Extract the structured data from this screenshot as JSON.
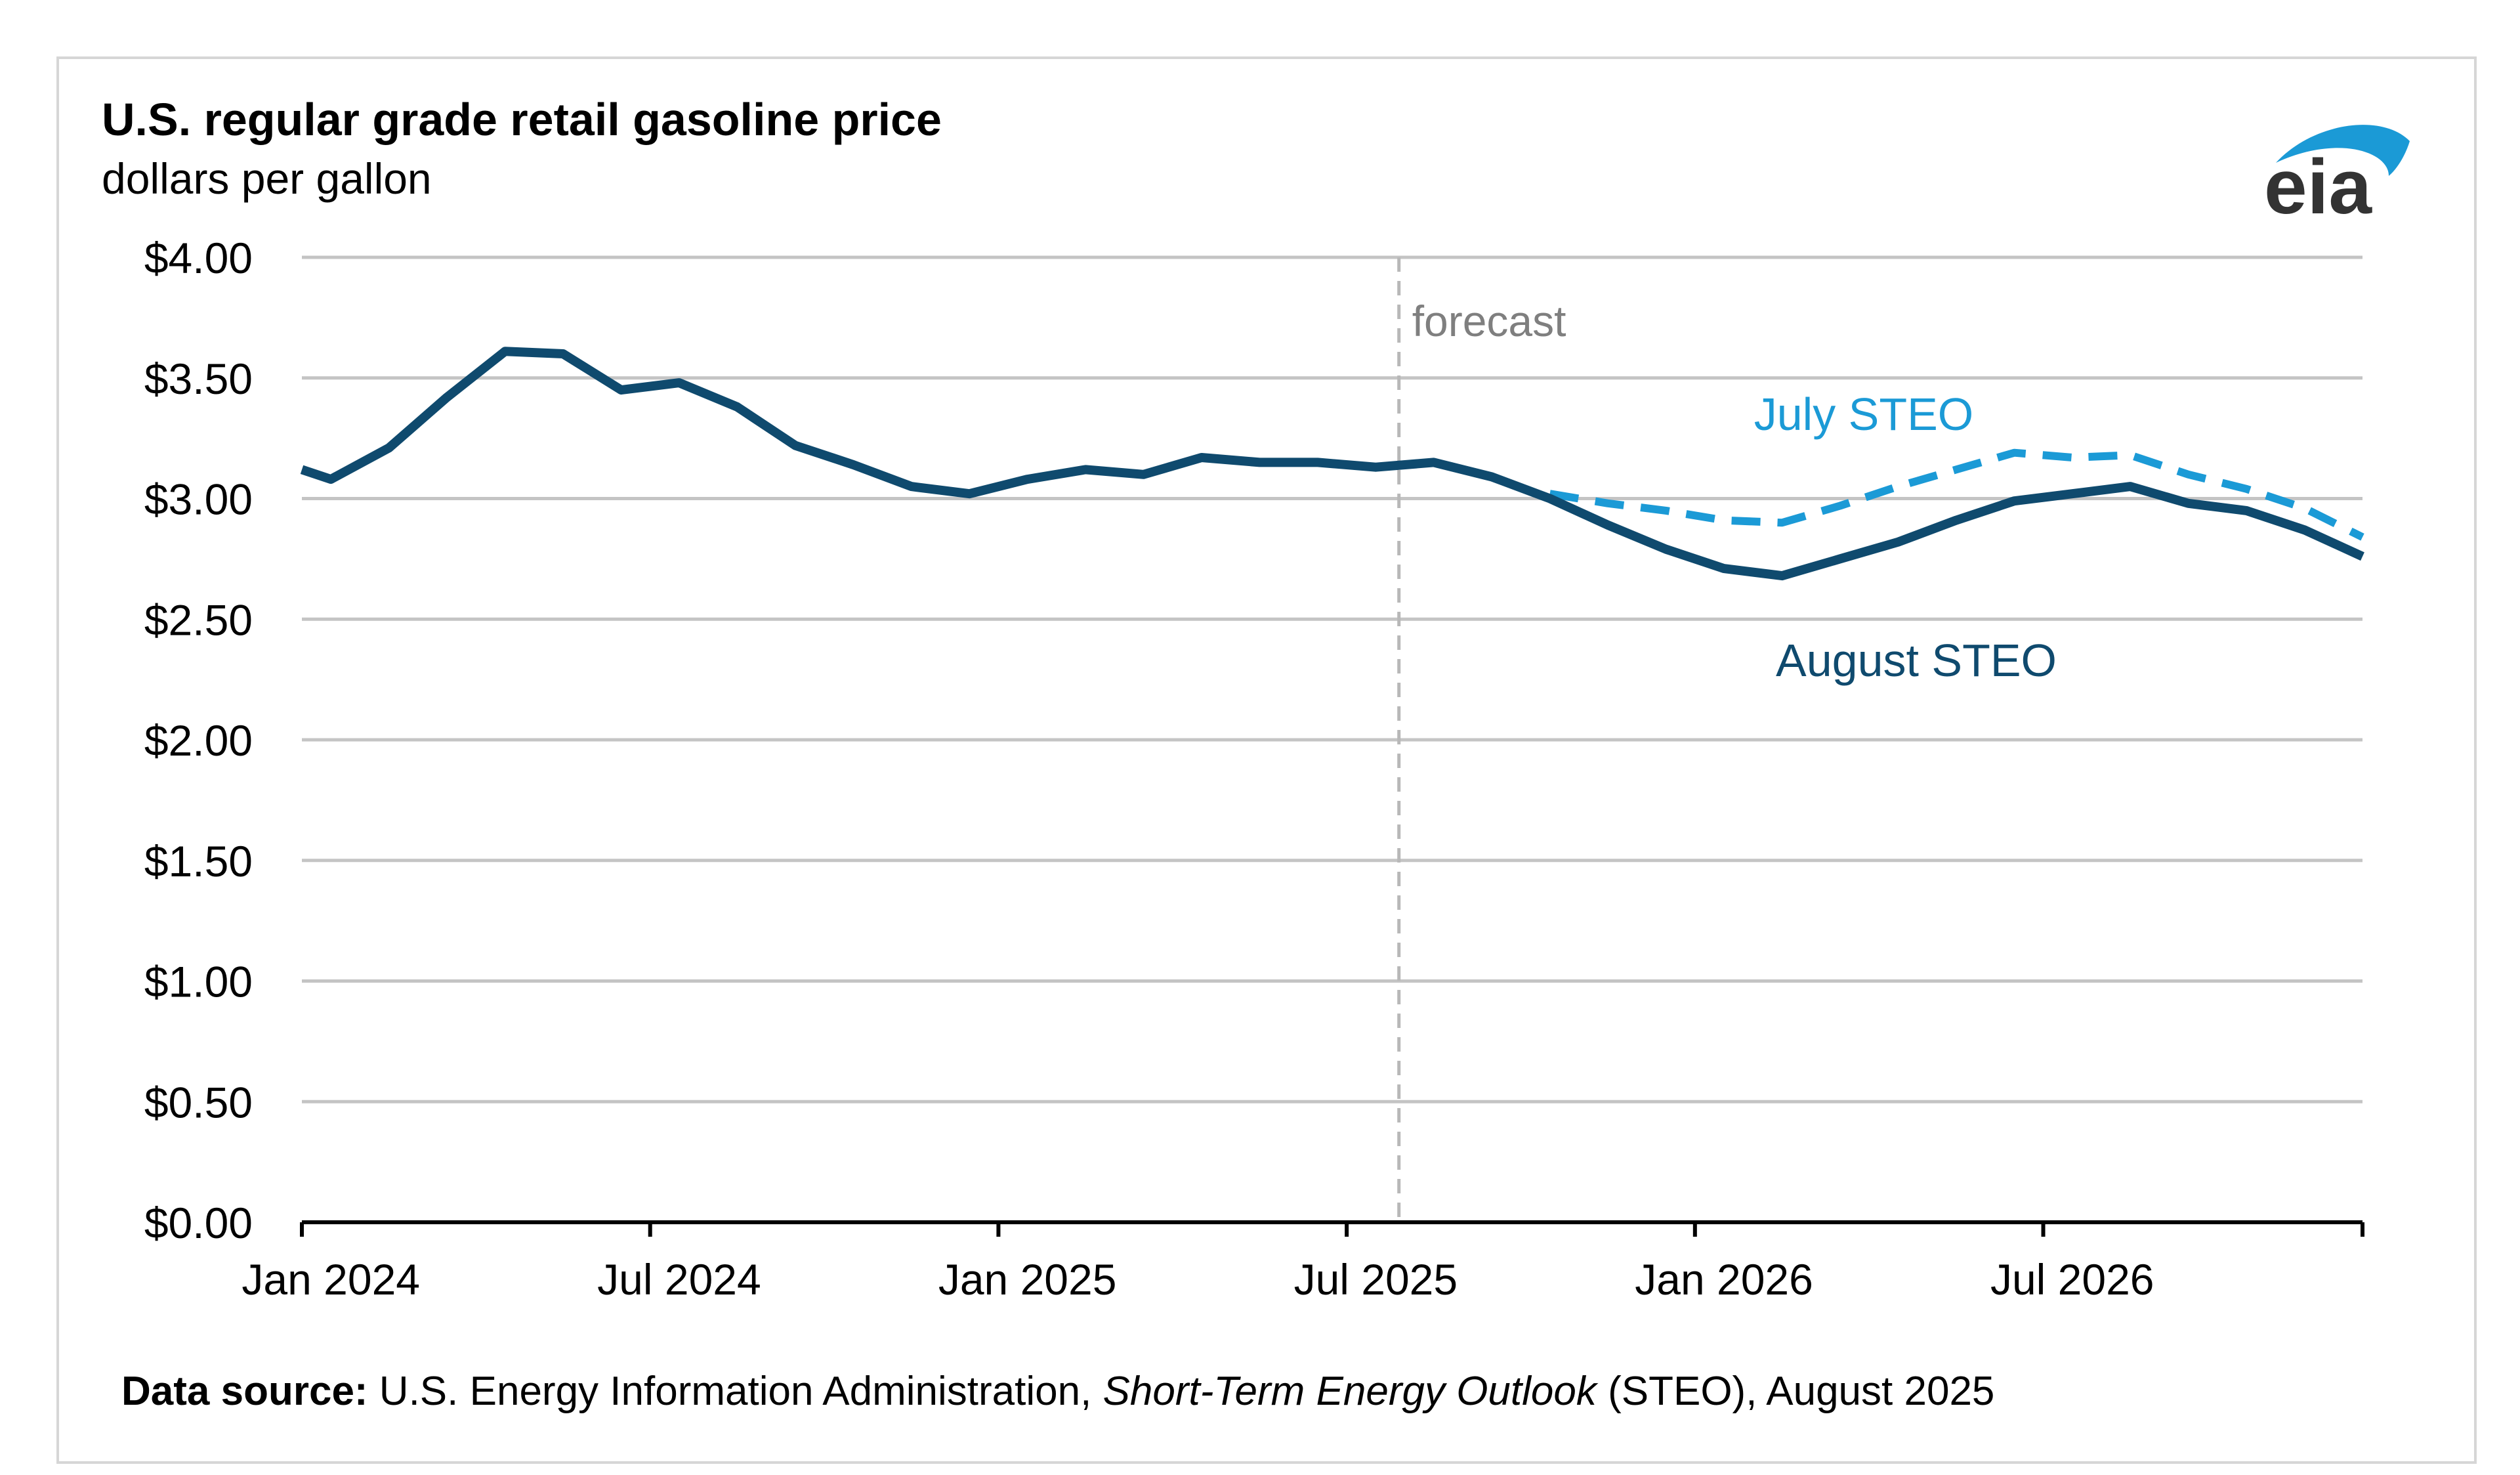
{
  "colors": {
    "august_line": "#0f4a6e",
    "july_line": "#1b9ad6",
    "gridline": "#c4c4c4",
    "axis": "#000000",
    "forecast_divider": "#b8b8b8",
    "forecast_label": "#7f7f7f",
    "title": "#000000",
    "frame": "#d6d6d6",
    "logo_text": "#333333",
    "logo_swoosh": "#1b9ad6"
  },
  "chart_data": {
    "type": "line",
    "title": "U.S. regular grade retail gasoline price",
    "subtitle": "dollars per gallon",
    "xlabel": "",
    "ylabel": "",
    "ylim": [
      0,
      4
    ],
    "y_ticks": [
      {
        "value": 4.0,
        "label": "$4.00"
      },
      {
        "value": 3.5,
        "label": "$3.50"
      },
      {
        "value": 3.0,
        "label": "$3.00"
      },
      {
        "value": 2.5,
        "label": "$2.50"
      },
      {
        "value": 2.0,
        "label": "$2.00"
      },
      {
        "value": 1.5,
        "label": "$1.50"
      },
      {
        "value": 1.0,
        "label": "$1.00"
      },
      {
        "value": 0.5,
        "label": "$0.50"
      },
      {
        "value": 0.0,
        "label": "$0.00"
      }
    ],
    "x_ticks": [
      {
        "index": 0,
        "label": "Jan 2024"
      },
      {
        "index": 6,
        "label": "Jul 2024"
      },
      {
        "index": 12,
        "label": "Jan 2025"
      },
      {
        "index": 18,
        "label": "Jul 2025"
      },
      {
        "index": 24,
        "label": "Jan 2026"
      },
      {
        "index": 30,
        "label": "Jul 2026"
      }
    ],
    "x_domain": [
      0,
      35.5
    ],
    "months": [
      "Jan 2024",
      "Feb 2024",
      "Mar 2024",
      "Apr 2024",
      "May 2024",
      "Jun 2024",
      "Jul 2024",
      "Aug 2024",
      "Sep 2024",
      "Oct 2024",
      "Nov 2024",
      "Dec 2024",
      "Jan 2025",
      "Feb 2025",
      "Mar 2025",
      "Apr 2025",
      "May 2025",
      "Jun 2025",
      "Jul 2025",
      "Aug 2025",
      "Sep 2025",
      "Oct 2025",
      "Nov 2025",
      "Dec 2025",
      "Jan 2026",
      "Feb 2026",
      "Mar 2026",
      "Apr 2026",
      "May 2026",
      "Jun 2026",
      "Jul 2026",
      "Aug 2026",
      "Sep 2026",
      "Oct 2026",
      "Nov 2026",
      "Dec 2026"
    ],
    "forecast_start_index": 18.9,
    "forecast_label": "forecast",
    "series": [
      {
        "name": "August STEO",
        "style": "solid",
        "points": [
          [
            0,
            3.12
          ],
          [
            0.5,
            3.08
          ],
          [
            1.5,
            3.21
          ],
          [
            2.5,
            3.42
          ],
          [
            3.5,
            3.61
          ],
          [
            4.5,
            3.6
          ],
          [
            5.5,
            3.45
          ],
          [
            6.5,
            3.48
          ],
          [
            7.5,
            3.38
          ],
          [
            8.5,
            3.22
          ],
          [
            9.5,
            3.14
          ],
          [
            10.5,
            3.05
          ],
          [
            11.5,
            3.02
          ],
          [
            12.5,
            3.08
          ],
          [
            13.5,
            3.12
          ],
          [
            14.5,
            3.1
          ],
          [
            15.5,
            3.17
          ],
          [
            16.5,
            3.15
          ],
          [
            17.5,
            3.15
          ],
          [
            18.5,
            3.13
          ],
          [
            19.5,
            3.15
          ],
          [
            20.5,
            3.09
          ],
          [
            21.5,
            3.0
          ],
          [
            22.5,
            2.89
          ],
          [
            23.5,
            2.79
          ],
          [
            24.5,
            2.71
          ],
          [
            25.5,
            2.68
          ],
          [
            26.5,
            2.75
          ],
          [
            27.5,
            2.82
          ],
          [
            28.5,
            2.91
          ],
          [
            29.5,
            2.99
          ],
          [
            30.5,
            3.02
          ],
          [
            31.5,
            3.05
          ],
          [
            32.5,
            2.98
          ],
          [
            33.5,
            2.95
          ],
          [
            34.5,
            2.87
          ],
          [
            35.5,
            2.76
          ]
        ]
      },
      {
        "name": "July STEO",
        "style": "dashed",
        "points": [
          [
            21.5,
            3.02
          ],
          [
            22.5,
            2.98
          ],
          [
            23.5,
            2.95
          ],
          [
            24.5,
            2.91
          ],
          [
            25.5,
            2.9
          ],
          [
            26.5,
            2.97
          ],
          [
            27.5,
            3.05
          ],
          [
            28.5,
            3.12
          ],
          [
            29.5,
            3.19
          ],
          [
            30.5,
            3.17
          ],
          [
            31.5,
            3.18
          ],
          [
            32.5,
            3.1
          ],
          [
            33.5,
            3.04
          ],
          [
            34.5,
            2.96
          ],
          [
            35.5,
            2.84
          ]
        ]
      }
    ],
    "annotations": [
      {
        "text": "July STEO",
        "series": "July STEO"
      },
      {
        "text": "August STEO",
        "series": "August STEO"
      }
    ]
  },
  "source": {
    "label": "Data source:",
    "text_before": " U.S. Energy Information Administration, ",
    "italic": "Short-Term Energy Outlook",
    "text_after": " (STEO), August 2025"
  },
  "logo": {
    "text": "eia",
    "icon": "eia-swoosh-logo"
  }
}
